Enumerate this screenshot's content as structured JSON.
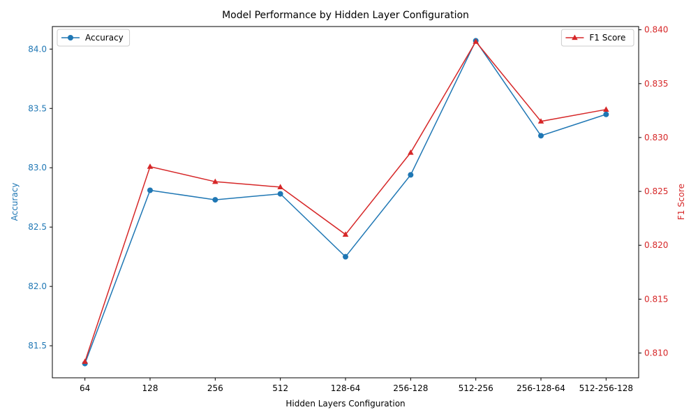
{
  "chart_data": {
    "type": "line",
    "title": "Model Performance by Hidden Layer Configuration",
    "xlabel": "Hidden Layers Configuration",
    "categories": [
      "64",
      "128",
      "256",
      "512",
      "128-64",
      "256-128",
      "512-256",
      "256-128-64",
      "512-256-128"
    ],
    "y_left": {
      "label": "Accuracy",
      "color": "#1f77b4",
      "ylim": [
        81.23,
        84.19
      ],
      "ticks": [
        81.5,
        82.0,
        82.5,
        83.0,
        83.5,
        84.0
      ],
      "tick_labels": [
        "81.5",
        "82.0",
        "82.5",
        "83.0",
        "83.5",
        "84.0"
      ]
    },
    "y_right": {
      "label": "F1 Score",
      "color": "#d62728",
      "ylim": [
        0.8077,
        0.8403
      ],
      "ticks": [
        0.81,
        0.815,
        0.82,
        0.825,
        0.83,
        0.835,
        0.84
      ],
      "tick_labels": [
        "0.810",
        "0.815",
        "0.820",
        "0.825",
        "0.830",
        "0.835",
        "0.840"
      ]
    },
    "series": [
      {
        "name": "Accuracy",
        "axis": "left",
        "color": "#1f77b4",
        "marker": "circle",
        "values": [
          81.35,
          82.81,
          82.73,
          82.78,
          82.25,
          82.94,
          84.07,
          83.27,
          83.45
        ]
      },
      {
        "name": "F1 Score",
        "axis": "right",
        "color": "#d62728",
        "marker": "triangle",
        "values": [
          0.8092,
          0.8273,
          0.8259,
          0.8254,
          0.821,
          0.8286,
          0.8389,
          0.8315,
          0.8326
        ]
      }
    ],
    "legends": [
      {
        "series": "Accuracy",
        "position": "upper-left"
      },
      {
        "series": "F1 Score",
        "position": "upper-right"
      }
    ],
    "grid": false
  }
}
